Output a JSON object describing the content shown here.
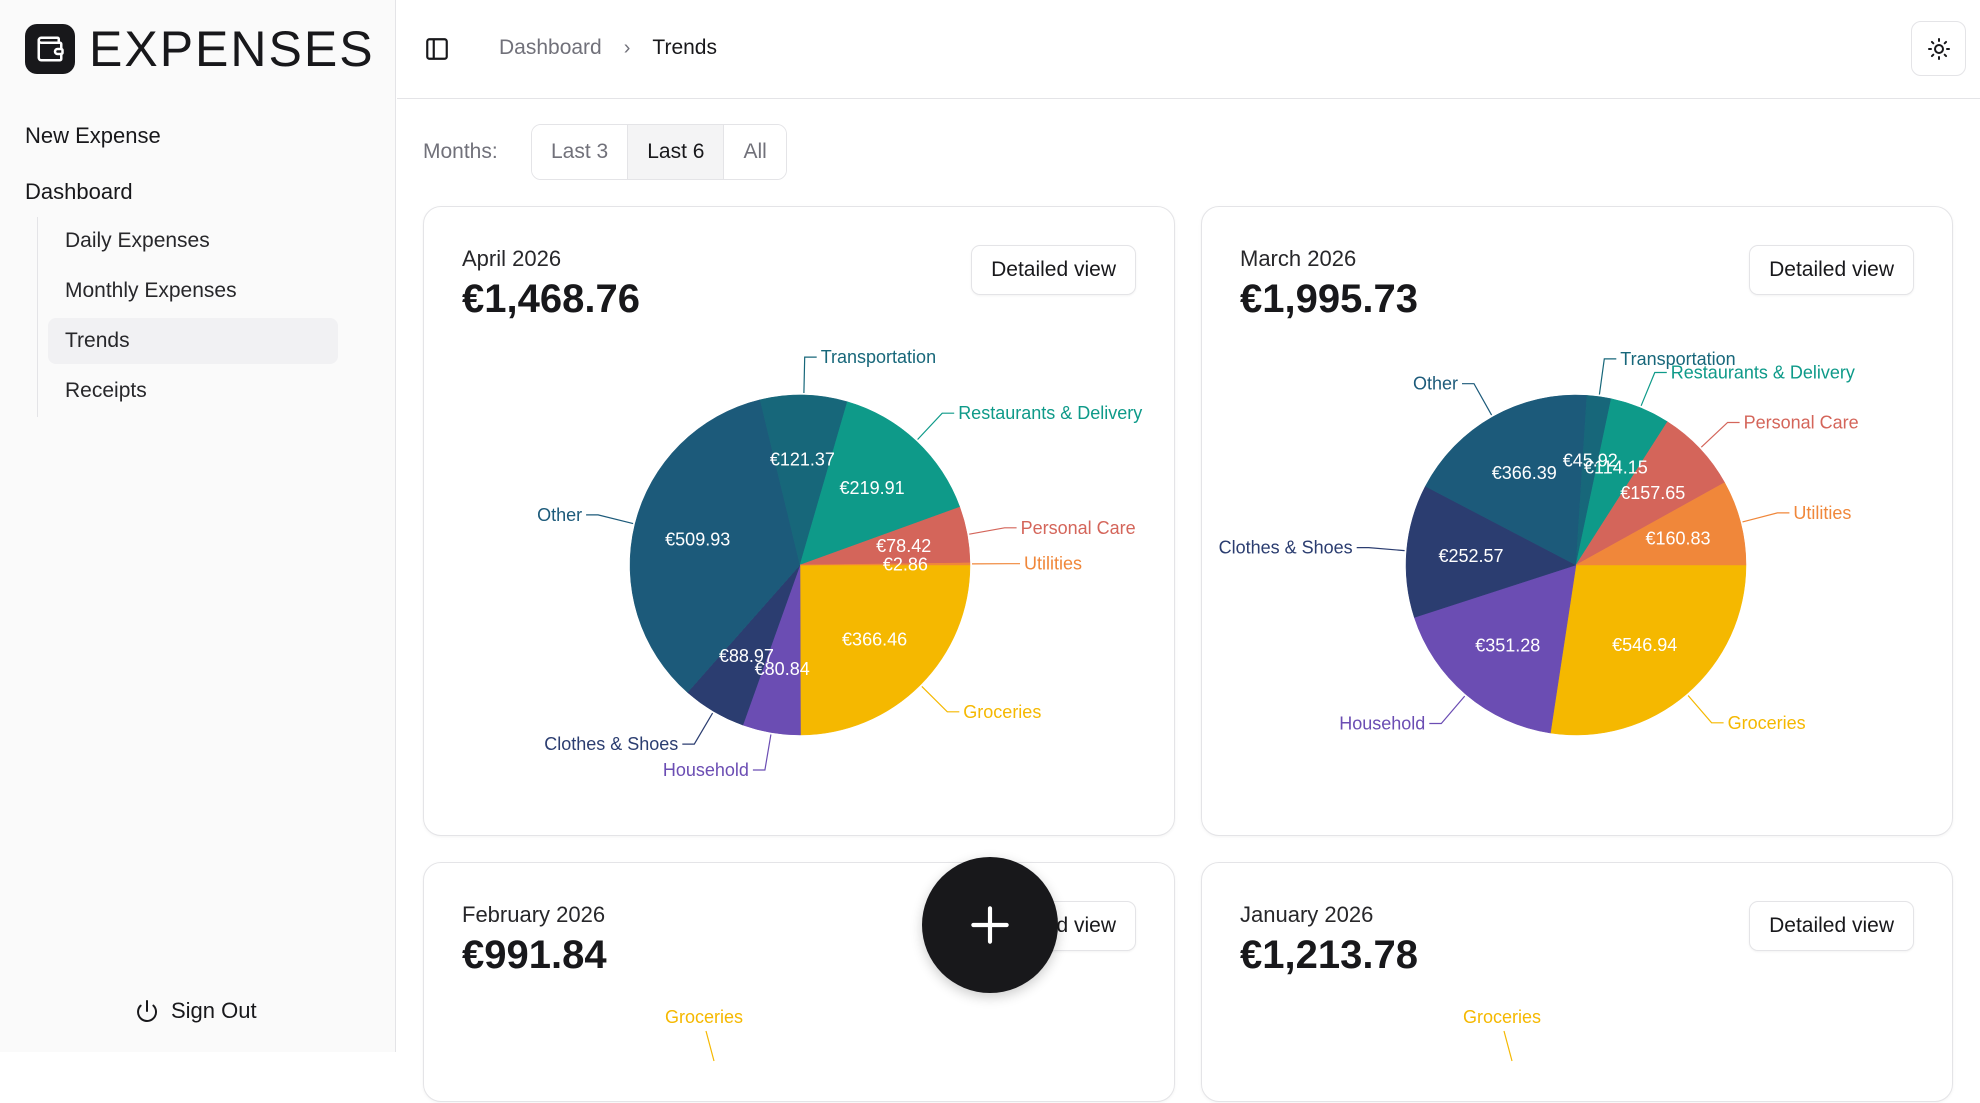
{
  "app": {
    "brand": "EXPENSES"
  },
  "sidebar": {
    "new_expense": "New Expense",
    "dashboard": "Dashboard",
    "items": [
      {
        "label": "Daily Expenses",
        "active": false
      },
      {
        "label": "Monthly Expenses",
        "active": false
      },
      {
        "label": "Trends",
        "active": true
      },
      {
        "label": "Receipts",
        "active": false
      }
    ],
    "sign_out": "Sign Out"
  },
  "header": {
    "breadcrumb": [
      "Dashboard",
      "Trends"
    ]
  },
  "filter": {
    "label": "Months:",
    "options": [
      "Last 3",
      "Last 6",
      "All"
    ],
    "selected": "Last 6"
  },
  "detail_label": "Detailed view",
  "colors": {
    "Groceries": "#f5b800",
    "Household": "#6b4db3",
    "Clothes & Shoes": "#2b3d70",
    "Other": "#1c5a7a",
    "Transportation": "#17677a",
    "Restaurants & Delivery": "#0e9a89",
    "Personal Care": "#d4655a",
    "Utilities": "#f0873a"
  },
  "cards": [
    {
      "month": "April 2026",
      "total": "€1,468.76"
    },
    {
      "month": "March 2026",
      "total": "€1,995.73"
    },
    {
      "month": "February 2026",
      "total": "€991.84"
    },
    {
      "month": "January 2026",
      "total": "€1,213.78"
    }
  ],
  "chart_data": [
    {
      "type": "pie",
      "title": "April 2026",
      "slices": [
        {
          "label": "Groceries",
          "value": 366.46,
          "value_label": "€366.46"
        },
        {
          "label": "Household",
          "value": 80.84,
          "value_label": "€80.84"
        },
        {
          "label": "Clothes & Shoes",
          "value": 88.97,
          "value_label": "€88.97"
        },
        {
          "label": "Other",
          "value": 509.93,
          "value_label": "€509.93"
        },
        {
          "label": "Transportation",
          "value": 121.37,
          "value_label": "€121.37"
        },
        {
          "label": "Restaurants & Delivery",
          "value": 219.91,
          "value_label": "€219.91"
        },
        {
          "label": "Personal Care",
          "value": 78.42,
          "value_label": "€78.42"
        },
        {
          "label": "Utilities",
          "value": 2.86,
          "value_label": "€2.86"
        }
      ]
    },
    {
      "type": "pie",
      "title": "March 2026",
      "slices": [
        {
          "label": "Groceries",
          "value": 546.94,
          "value_label": "€546.94"
        },
        {
          "label": "Household",
          "value": 351.28,
          "value_label": "€351.28"
        },
        {
          "label": "Clothes & Shoes",
          "value": 252.57,
          "value_label": "€252.57"
        },
        {
          "label": "Other",
          "value": 366.39,
          "value_label": "€366.39"
        },
        {
          "label": "Transportation",
          "value": 45.92,
          "value_label": "€45.92"
        },
        {
          "label": "Restaurants & Delivery",
          "value": 114.15,
          "value_label": "€114.15"
        },
        {
          "label": "Personal Care",
          "value": 157.65,
          "value_label": "€157.65"
        },
        {
          "label": "Utilities",
          "value": 160.83,
          "value_label": "€160.83"
        }
      ]
    },
    {
      "type": "pie",
      "title": "February 2026",
      "slices": [
        {
          "label": "Groceries",
          "value": null
        }
      ]
    },
    {
      "type": "pie",
      "title": "January 2026",
      "slices": [
        {
          "label": "Groceries",
          "value": null
        }
      ]
    }
  ]
}
